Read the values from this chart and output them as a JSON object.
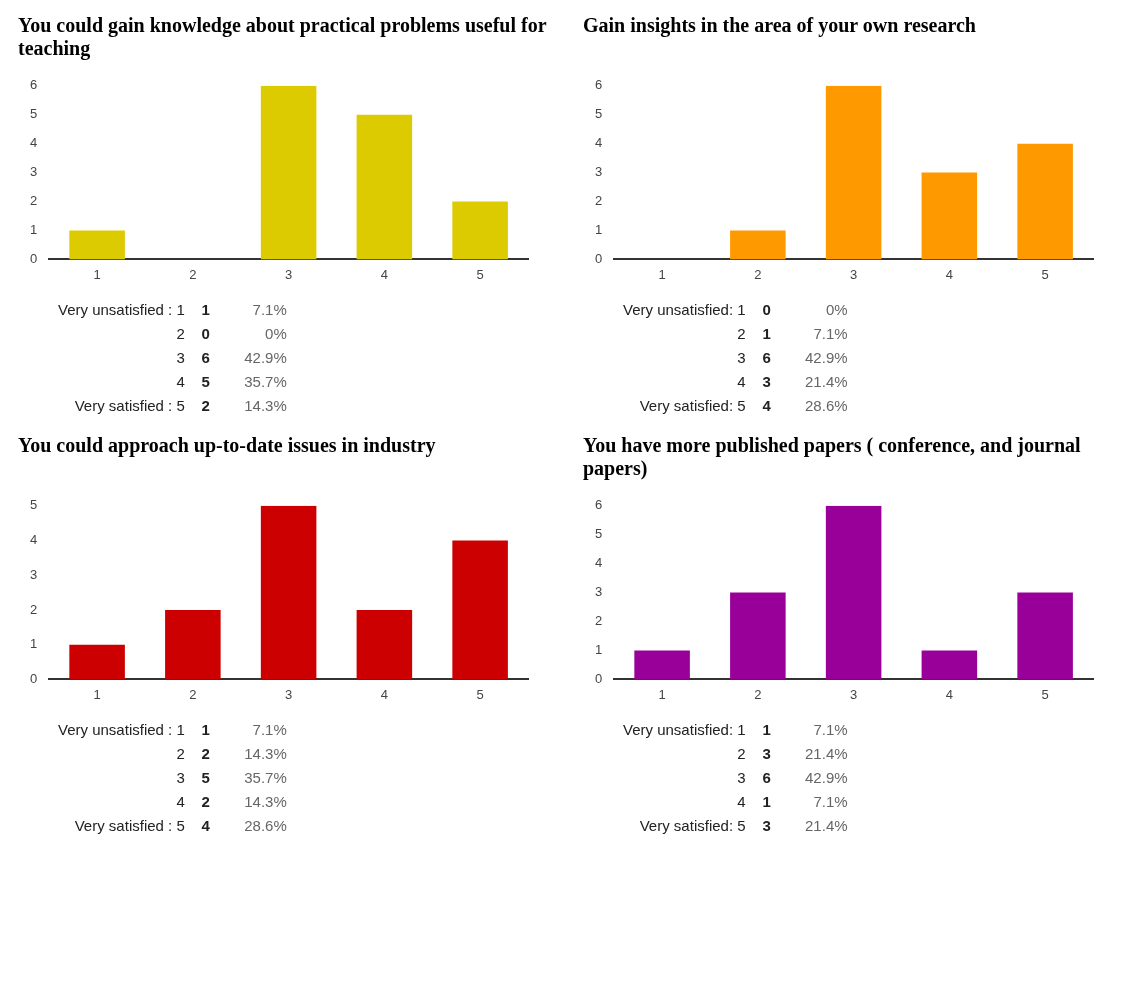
{
  "chart_data": [
    {
      "type": "bar",
      "title": "You could gain knowledge about practical problems useful for teaching",
      "categories": [
        "1",
        "2",
        "3",
        "4",
        "5"
      ],
      "values": [
        1,
        0,
        6,
        5,
        2
      ],
      "color": "#dccb00",
      "ylim": [
        0,
        6
      ],
      "yticks": [
        0,
        1,
        2,
        3,
        4,
        5,
        6
      ],
      "grid": false
    },
    {
      "type": "bar",
      "title": "Gain insights in the area of your own research",
      "categories": [
        "1",
        "2",
        "3",
        "4",
        "5"
      ],
      "values": [
        0,
        1,
        6,
        3,
        4
      ],
      "color": "#ff9900",
      "ylim": [
        0,
        6
      ],
      "yticks": [
        0,
        1,
        2,
        3,
        4,
        5,
        6
      ],
      "grid": false
    },
    {
      "type": "other",
      "annotations": [
        "Very unsatisfied : 1",
        "1",
        "7.1%",
        "2",
        "0",
        "0%",
        "3",
        "6",
        "42.9%",
        "4",
        "5",
        "35.7%",
        "Very satisfied : 5",
        "2",
        "14.3%"
      ]
    },
    {
      "type": "other",
      "annotations": [
        "Very unsatisfied: 1",
        "0",
        "0%",
        "2",
        "1",
        "7.1%",
        "3",
        "6",
        "42.9%",
        "4",
        "3",
        "21.4%",
        "Very satisfied: 5",
        "4",
        "28.6%"
      ]
    },
    {
      "type": "bar",
      "title": "You could approach up-to-date issues in industry",
      "categories": [
        "1",
        "2",
        "3",
        "4",
        "5"
      ],
      "values": [
        1,
        2,
        5,
        2,
        4
      ],
      "color": "#cc0000",
      "ylim": [
        0,
        5
      ],
      "yticks": [
        0,
        1,
        2,
        3,
        4,
        5
      ],
      "grid": false
    },
    {
      "type": "bar",
      "title": "You have more published papers ( conference, and journal papers)",
      "categories": [
        "1",
        "2",
        "3",
        "4",
        "5"
      ],
      "values": [
        1,
        3,
        6,
        1,
        3
      ],
      "color": "#990099",
      "ylim": [
        0,
        6
      ],
      "yticks": [
        0,
        1,
        2,
        3,
        4,
        5,
        6
      ],
      "grid": false
    },
    {
      "type": "other",
      "annotations": [
        "Very unsatisfied : 1",
        "1",
        "7.1%",
        "2",
        "2",
        "14.3%",
        "3",
        "5",
        "35.7%",
        "4",
        "2",
        "14.3%",
        "Very satisfied : 5",
        "4",
        "28.6%"
      ]
    },
    {
      "type": "other",
      "annotations": [
        "Very unsatisfied: 1",
        "1",
        "7.1%",
        "2",
        "3",
        "21.4%",
        "3",
        "6",
        "42.9%",
        "4",
        "1",
        "7.1%",
        "Very satisfied: 5",
        "3",
        "21.4%"
      ]
    }
  ]
}
